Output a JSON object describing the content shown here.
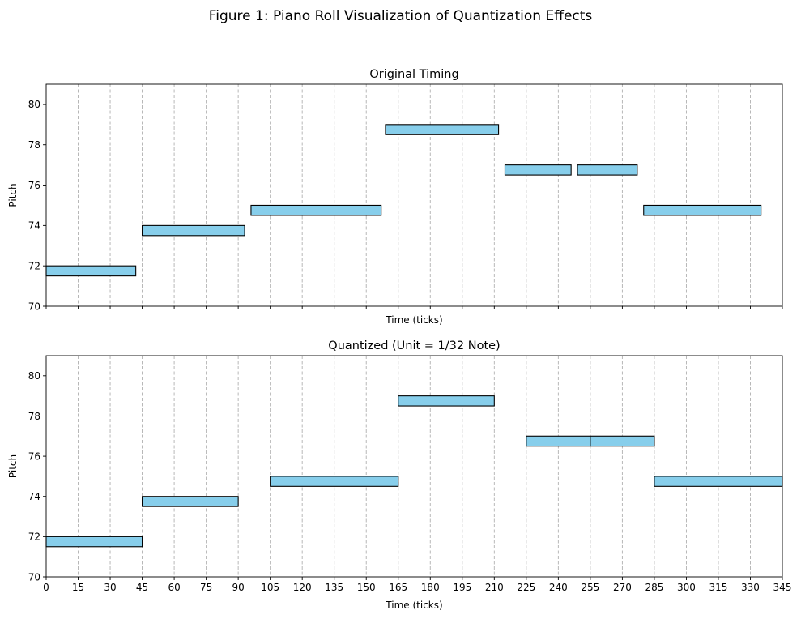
{
  "figure_title": "Figure 1: Piano Roll Visualization of Quantization Effects",
  "colors": {
    "note_fill": "#87ceeb",
    "note_edge": "#000000",
    "grid": "#b0b0b0",
    "background": "#ffffff"
  },
  "chart_data": [
    {
      "type": "piano-roll",
      "title": "Original Timing",
      "xlabel": "Time (ticks)",
      "ylabel": "Pitch",
      "xlim": [
        0,
        345
      ],
      "ylim": [
        70,
        81
      ],
      "grid": "vertical dashed lines at each x tick",
      "x_ticks": [
        0,
        15,
        30,
        45,
        60,
        75,
        90,
        105,
        120,
        135,
        150,
        165,
        180,
        195,
        210,
        225,
        240,
        255,
        270,
        285,
        300,
        315,
        330,
        345
      ],
      "x_tick_labels_shown": false,
      "y_ticks": [
        70,
        72,
        74,
        76,
        78,
        80
      ],
      "notes": [
        {
          "pitch": 72,
          "start": 0,
          "end": 42
        },
        {
          "pitch": 74,
          "start": 45,
          "end": 93
        },
        {
          "pitch": 75,
          "start": 96,
          "end": 157
        },
        {
          "pitch": 79,
          "start": 159,
          "end": 212
        },
        {
          "pitch": 77,
          "start": 215,
          "end": 246
        },
        {
          "pitch": 77,
          "start": 249,
          "end": 277
        },
        {
          "pitch": 75,
          "start": 280,
          "end": 335
        }
      ]
    },
    {
      "type": "piano-roll",
      "title": "Quantized (Unit = 1/32 Note)",
      "xlabel": "Time (ticks)",
      "ylabel": "Pitch",
      "xlim": [
        0,
        345
      ],
      "ylim": [
        70,
        81
      ],
      "grid": "vertical dashed lines at each x tick",
      "x_ticks": [
        0,
        15,
        30,
        45,
        60,
        75,
        90,
        105,
        120,
        135,
        150,
        165,
        180,
        195,
        210,
        225,
        240,
        255,
        270,
        285,
        300,
        315,
        330,
        345
      ],
      "x_tick_labels_shown": true,
      "y_ticks": [
        70,
        72,
        74,
        76,
        78,
        80
      ],
      "notes": [
        {
          "pitch": 72,
          "start": 0,
          "end": 45
        },
        {
          "pitch": 74,
          "start": 45,
          "end": 90
        },
        {
          "pitch": 75,
          "start": 105,
          "end": 165
        },
        {
          "pitch": 79,
          "start": 165,
          "end": 210
        },
        {
          "pitch": 77,
          "start": 225,
          "end": 255
        },
        {
          "pitch": 77,
          "start": 255,
          "end": 285
        },
        {
          "pitch": 75,
          "start": 285,
          "end": 345
        }
      ]
    }
  ]
}
